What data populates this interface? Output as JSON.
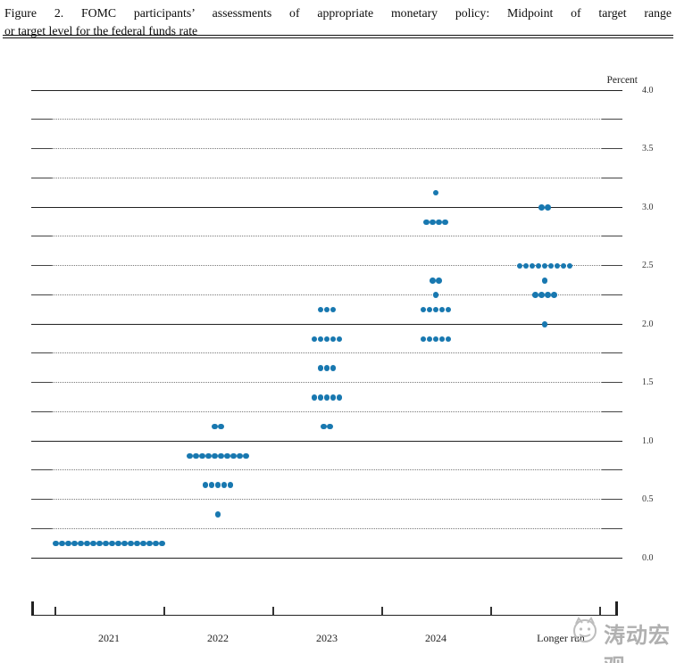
{
  "header": {
    "title_line1": "Figure 2.  FOMC participants’ assessments of appropriate monetary policy:  Midpoint of target range",
    "title_line2": "or target level for the federal funds rate"
  },
  "chart_data": {
    "type": "scatter",
    "subtype": "fomc-dot-plot",
    "title": "Figure 2. FOMC participants’ assessments of appropriate monetary policy: Midpoint of target range or target level for the federal funds rate",
    "ylabel": "Percent",
    "ylim": [
      0.0,
      4.0
    ],
    "ytick_labels": [
      "0.0",
      "0.5",
      "1.0",
      "1.5",
      "2.0",
      "2.5",
      "3.0",
      "3.5",
      "4.0"
    ],
    "grid_interval": 0.25,
    "solid_line_values": [
      0.0,
      1.0,
      2.0,
      3.0,
      4.0
    ],
    "legend_position": "none",
    "grid": "dotted-quarter-lines",
    "categories": [
      "2021",
      "2022",
      "2023",
      "2024",
      "Longer run"
    ],
    "series": [
      {
        "category": "2021",
        "dots": [
          {
            "rate": 0.125,
            "count": 18
          }
        ]
      },
      {
        "category": "2022",
        "dots": [
          {
            "rate": 1.125,
            "count": 2
          },
          {
            "rate": 0.875,
            "count": 10
          },
          {
            "rate": 0.625,
            "count": 5
          },
          {
            "rate": 0.375,
            "count": 1
          }
        ]
      },
      {
        "category": "2023",
        "dots": [
          {
            "rate": 2.125,
            "count": 3
          },
          {
            "rate": 1.875,
            "count": 5
          },
          {
            "rate": 1.625,
            "count": 3
          },
          {
            "rate": 1.375,
            "count": 5
          },
          {
            "rate": 1.125,
            "count": 2
          }
        ]
      },
      {
        "category": "2024",
        "dots": [
          {
            "rate": 3.125,
            "count": 1
          },
          {
            "rate": 2.875,
            "count": 4
          },
          {
            "rate": 2.375,
            "count": 2
          },
          {
            "rate": 2.25,
            "count": 1
          },
          {
            "rate": 2.125,
            "count": 5
          },
          {
            "rate": 1.875,
            "count": 5
          }
        ]
      },
      {
        "category": "Longer run",
        "dots": [
          {
            "rate": 3.0,
            "count": 2
          },
          {
            "rate": 2.5,
            "count": 9
          },
          {
            "rate": 2.375,
            "count": 1
          },
          {
            "rate": 2.25,
            "count": 4
          },
          {
            "rate": 2.0,
            "count": 1
          }
        ]
      }
    ],
    "dot_color": "#1878b0",
    "axis_color": "#222222",
    "grid_color": "#7a7a7a"
  },
  "watermark": {
    "text": "涛动宏观",
    "logo": "cat-circle-emblem",
    "color": "#b0b0b0"
  }
}
